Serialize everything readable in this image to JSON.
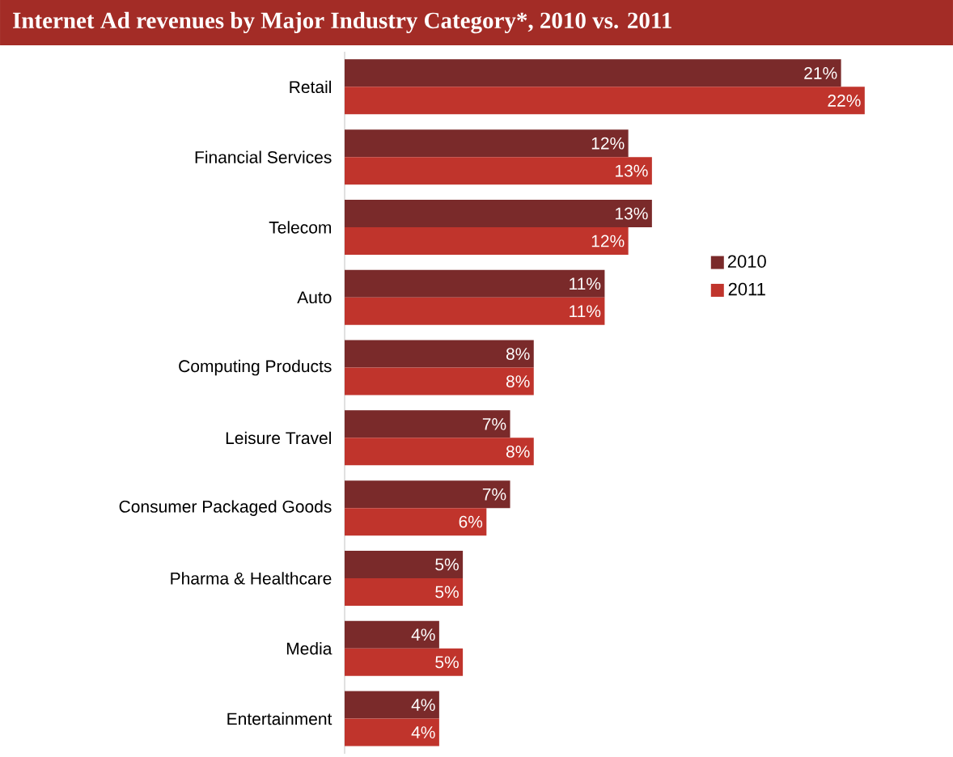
{
  "chart_data": {
    "type": "bar",
    "orientation": "horizontal",
    "title": "Internet Ad revenues by Major Industry Category*, 2010 vs. 2011",
    "categories": [
      "Retail",
      "Financial Services",
      "Telecom",
      "Auto",
      "Computing Products",
      "Leisure Travel",
      "Consumer Packaged Goods",
      "Pharma & Healthcare",
      "Media",
      "Entertainment"
    ],
    "series": [
      {
        "name": "2010",
        "color": "#7a2a2a",
        "values": [
          21,
          12,
          13,
          11,
          8,
          7,
          7,
          5,
          4,
          4
        ],
        "value_labels": [
          "21%",
          "12%",
          "13%",
          "11%",
          "8%",
          "7%",
          "7%",
          "5%",
          "4%",
          "4%"
        ]
      },
      {
        "name": "2011",
        "color": "#c0342c",
        "values": [
          22,
          13,
          12,
          11,
          8,
          8,
          6,
          5,
          5,
          4
        ],
        "value_labels": [
          "22%",
          "13%",
          "12%",
          "11%",
          "8%",
          "8%",
          "6%",
          "5%",
          "5%",
          "4%"
        ]
      }
    ],
    "legend": "right"
  }
}
